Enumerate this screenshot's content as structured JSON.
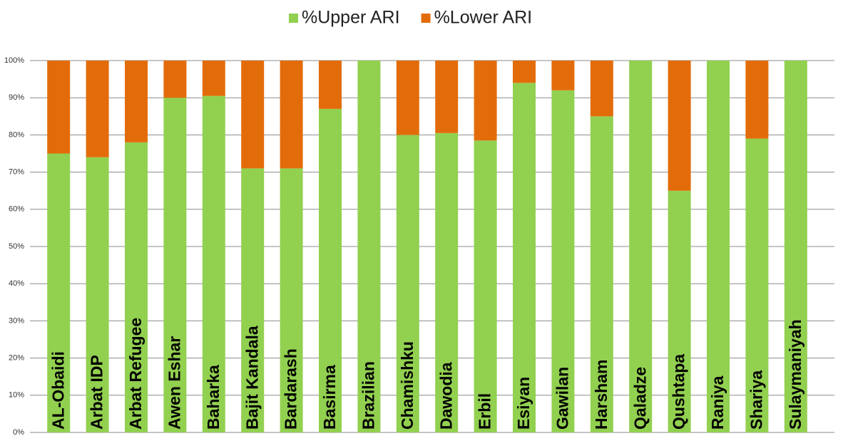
{
  "chart_data": {
    "type": "stacked_bar",
    "categories": [
      "AL-Obaidi",
      "Arbat IDP",
      "Arbat Refugee",
      "Awen Eshar",
      "Baharka",
      "Bajit Kandala",
      "Bardarash",
      "Basirma",
      "Brazilian",
      "Chamishku",
      "Dawodia",
      "Erbil",
      "Esiyan",
      "Gawilan",
      "Harsham",
      "Qaladze",
      "Qushtapa",
      "Raniya",
      "Shariya",
      "Sulaymaniyah"
    ],
    "series": [
      {
        "name": "%Upper ARI",
        "color": "#92d050",
        "values": [
          75,
          74,
          78,
          90,
          90.5,
          71,
          71,
          87,
          100,
          80,
          80.5,
          78.5,
          94,
          92,
          85,
          100,
          65,
          100,
          79,
          100
        ]
      },
      {
        "name": "%Lower ARI",
        "color": "#e36c0a",
        "values": [
          25,
          26,
          22,
          10,
          9.5,
          29,
          29,
          13,
          0,
          20,
          19.5,
          21.5,
          6,
          8,
          15,
          0,
          35,
          0,
          21,
          0
        ]
      }
    ],
    "ylim": [
      0,
      100
    ],
    "yticks": [
      {
        "value": 0,
        "label": "0%"
      },
      {
        "value": 10,
        "label": "10%"
      },
      {
        "value": 20,
        "label": "20%"
      },
      {
        "value": 30,
        "label": "30%"
      },
      {
        "value": 40,
        "label": "40%"
      },
      {
        "value": 50,
        "label": "50%"
      },
      {
        "value": 60,
        "label": "60%"
      },
      {
        "value": 70,
        "label": "70%"
      },
      {
        "value": 80,
        "label": "80%"
      },
      {
        "value": 90,
        "label": "90%"
      },
      {
        "value": 100,
        "label": "100%"
      }
    ],
    "grid": true,
    "legend": "top"
  }
}
